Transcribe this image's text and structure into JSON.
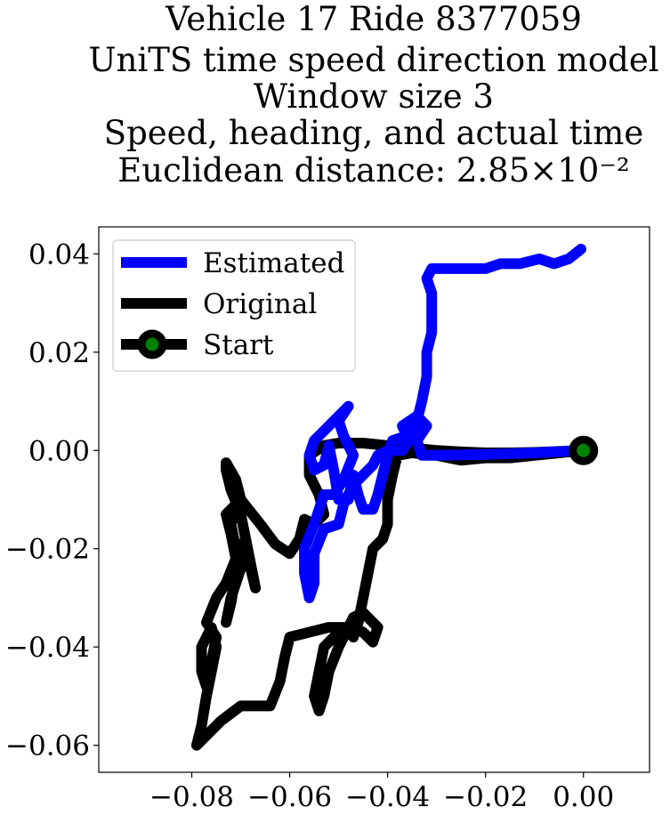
{
  "chart_data": {
    "type": "line",
    "title_lines": [
      "Vehicle 17 Ride 8377059",
      "UniTS time speed direction model",
      "Window size 3",
      "Speed, heading, and actual time",
      "Euclidean distance: 2.85×10⁻²"
    ],
    "xlabel": "",
    "ylabel": "",
    "xlim": [
      -0.099,
      0.0135
    ],
    "ylim": [
      -0.0655,
      0.0455
    ],
    "xticks": [
      -0.08,
      -0.06,
      -0.04,
      -0.02,
      0.0
    ],
    "xtick_labels": [
      "−0.08",
      "−0.06",
      "−0.04",
      "−0.02",
      "0.00"
    ],
    "yticks": [
      0.04,
      0.02,
      0.0,
      -0.02,
      -0.04,
      -0.06
    ],
    "ytick_labels": [
      "0.04",
      "0.02",
      "0.00",
      "−0.02",
      "−0.04",
      "−0.06"
    ],
    "grid": false,
    "legend": {
      "placement": "top-left",
      "entries": [
        {
          "label": "Estimated",
          "color": "#0000ff",
          "marker": "none"
        },
        {
          "label": "Original",
          "color": "#000000",
          "marker": "none"
        },
        {
          "label": "Start",
          "color": "#000000",
          "marker": "circle",
          "marker_face": "#008000"
        }
      ]
    },
    "series": [
      {
        "name": "Estimated",
        "color": "#0000ff",
        "points": [
          [
            0.0,
            0.0
          ],
          [
            -0.01,
            -0.0005
          ],
          [
            -0.02,
            -0.0008
          ],
          [
            -0.03,
            -0.001
          ],
          [
            -0.033,
            -0.001
          ],
          [
            -0.034,
            0.002
          ],
          [
            -0.032,
            0.005
          ],
          [
            -0.034,
            0.007
          ],
          [
            -0.037,
            0.005
          ],
          [
            -0.036,
            0.003
          ],
          [
            -0.039,
            0.002
          ],
          [
            -0.04,
            -0.001
          ],
          [
            -0.041,
            -0.005
          ],
          [
            -0.042,
            -0.009
          ],
          [
            -0.043,
            -0.012
          ],
          [
            -0.045,
            -0.012
          ],
          [
            -0.046,
            -0.009
          ],
          [
            -0.047,
            -0.005
          ],
          [
            -0.048,
            -0.01
          ],
          [
            -0.05,
            -0.01
          ],
          [
            -0.051,
            -0.004
          ],
          [
            -0.052,
            0.001
          ],
          [
            -0.053,
            -0.003
          ],
          [
            -0.055,
            -0.004
          ],
          [
            -0.056,
            -0.001
          ],
          [
            -0.055,
            0.002
          ],
          [
            -0.053,
            0.004
          ],
          [
            -0.051,
            0.006
          ],
          [
            -0.048,
            0.009
          ],
          [
            -0.05,
            0.006
          ],
          [
            -0.049,
            0.003
          ],
          [
            -0.047,
            -0.001
          ],
          [
            -0.049,
            -0.006
          ],
          [
            -0.051,
            -0.009
          ],
          [
            -0.053,
            -0.009
          ],
          [
            -0.055,
            -0.015
          ],
          [
            -0.057,
            -0.02
          ],
          [
            -0.057,
            -0.025
          ],
          [
            -0.056,
            -0.03
          ],
          [
            -0.055,
            -0.027
          ],
          [
            -0.055,
            -0.021
          ],
          [
            -0.053,
            -0.016
          ],
          [
            -0.05,
            -0.015
          ],
          [
            -0.049,
            -0.011
          ],
          [
            -0.047,
            -0.007
          ],
          [
            -0.045,
            -0.005
          ],
          [
            -0.043,
            -0.003
          ],
          [
            -0.042,
            -0.001
          ],
          [
            -0.04,
            0.0
          ],
          [
            -0.037,
            0.0
          ],
          [
            -0.035,
            0.003
          ],
          [
            -0.034,
            0.006
          ],
          [
            -0.033,
            0.01
          ],
          [
            -0.032,
            0.015
          ],
          [
            -0.032,
            0.02
          ],
          [
            -0.031,
            0.024
          ],
          [
            -0.031,
            0.028
          ],
          [
            -0.031,
            0.032
          ],
          [
            -0.032,
            0.035
          ],
          [
            -0.031,
            0.037
          ],
          [
            -0.028,
            0.037
          ],
          [
            -0.024,
            0.037
          ],
          [
            -0.02,
            0.037
          ],
          [
            -0.017,
            0.038
          ],
          [
            -0.013,
            0.038
          ],
          [
            -0.009,
            0.039
          ],
          [
            -0.006,
            0.038
          ],
          [
            -0.003,
            0.039
          ],
          [
            -0.0005,
            0.041
          ]
        ]
      },
      {
        "name": "Original",
        "color": "#000000",
        "points": [
          [
            0.0,
            0.0
          ],
          [
            -0.005,
            -0.0005
          ],
          [
            -0.01,
            -0.001
          ],
          [
            -0.015,
            -0.0015
          ],
          [
            -0.02,
            -0.0015
          ],
          [
            -0.025,
            -0.002
          ],
          [
            -0.03,
            -0.001
          ],
          [
            -0.035,
            -0.0005
          ],
          [
            -0.038,
            -0.001
          ],
          [
            -0.039,
            -0.005
          ],
          [
            -0.04,
            -0.01
          ],
          [
            -0.04,
            -0.015
          ],
          [
            -0.041,
            -0.018
          ],
          [
            -0.043,
            -0.02
          ],
          [
            -0.044,
            -0.025
          ],
          [
            -0.045,
            -0.03
          ],
          [
            -0.046,
            -0.035
          ],
          [
            -0.047,
            -0.038
          ],
          [
            -0.048,
            -0.036
          ],
          [
            -0.047,
            -0.034
          ],
          [
            -0.045,
            -0.033
          ],
          [
            -0.042,
            -0.036
          ],
          [
            -0.043,
            -0.039
          ],
          [
            -0.045,
            -0.037
          ],
          [
            -0.047,
            -0.036
          ],
          [
            -0.05,
            -0.037
          ],
          [
            -0.053,
            -0.04
          ],
          [
            -0.054,
            -0.045
          ],
          [
            -0.055,
            -0.05
          ],
          [
            -0.054,
            -0.053
          ],
          [
            -0.053,
            -0.05
          ],
          [
            -0.052,
            -0.045
          ],
          [
            -0.05,
            -0.04
          ],
          [
            -0.048,
            -0.036
          ],
          [
            -0.052,
            -0.036
          ],
          [
            -0.056,
            -0.037
          ],
          [
            -0.06,
            -0.038
          ],
          [
            -0.061,
            -0.042
          ],
          [
            -0.062,
            -0.047
          ],
          [
            -0.064,
            -0.052
          ],
          [
            -0.066,
            -0.052
          ],
          [
            -0.07,
            -0.052
          ],
          [
            -0.074,
            -0.055
          ],
          [
            -0.077,
            -0.058
          ],
          [
            -0.079,
            -0.06
          ],
          [
            -0.078,
            -0.056
          ],
          [
            -0.077,
            -0.05
          ],
          [
            -0.076,
            -0.045
          ],
          [
            -0.075,
            -0.04
          ],
          [
            -0.076,
            -0.036
          ],
          [
            -0.078,
            -0.04
          ],
          [
            -0.078,
            -0.045
          ],
          [
            -0.077,
            -0.048
          ],
          [
            -0.076,
            -0.043
          ],
          [
            -0.075,
            -0.038
          ],
          [
            -0.077,
            -0.035
          ],
          [
            -0.075,
            -0.03
          ],
          [
            -0.073,
            -0.027
          ],
          [
            -0.071,
            -0.022
          ],
          [
            -0.072,
            -0.017
          ],
          [
            -0.073,
            -0.013
          ],
          [
            -0.071,
            -0.011
          ],
          [
            -0.072,
            -0.015
          ],
          [
            -0.071,
            -0.02
          ],
          [
            -0.07,
            -0.024
          ],
          [
            -0.072,
            -0.03
          ],
          [
            -0.073,
            -0.035
          ],
          [
            -0.072,
            -0.031
          ],
          [
            -0.071,
            -0.025
          ],
          [
            -0.07,
            -0.019
          ],
          [
            -0.068,
            -0.024
          ],
          [
            -0.067,
            -0.028
          ],
          [
            -0.068,
            -0.023
          ],
          [
            -0.069,
            -0.018
          ],
          [
            -0.07,
            -0.013
          ],
          [
            -0.072,
            -0.008
          ],
          [
            -0.073,
            -0.004
          ],
          [
            -0.073,
            -0.0025
          ],
          [
            -0.071,
            -0.006
          ],
          [
            -0.07,
            -0.01
          ],
          [
            -0.066,
            -0.015
          ],
          [
            -0.063,
            -0.019
          ],
          [
            -0.06,
            -0.021
          ],
          [
            -0.058,
            -0.018
          ],
          [
            -0.057,
            -0.014
          ],
          [
            -0.055,
            -0.015
          ],
          [
            -0.053,
            -0.013
          ],
          [
            -0.054,
            -0.009
          ],
          [
            -0.056,
            -0.005
          ],
          [
            -0.056,
            -0.001
          ],
          [
            -0.053,
            0.001
          ],
          [
            -0.05,
            0.0015
          ],
          [
            -0.045,
            0.0015
          ],
          [
            -0.04,
            0.001
          ],
          [
            -0.035,
            0.0005
          ],
          [
            -0.03,
            0.0
          ],
          [
            -0.025,
            -0.0003
          ],
          [
            -0.02,
            -0.0005
          ],
          [
            -0.015,
            -0.0005
          ],
          [
            -0.01,
            -0.0004
          ],
          [
            -0.005,
            -0.0002
          ],
          [
            0.0,
            0.0
          ]
        ]
      }
    ],
    "start_point": {
      "name": "Start",
      "x": 0.0,
      "y": 0.0,
      "edge_color": "#000000",
      "face_color": "#008000"
    }
  }
}
